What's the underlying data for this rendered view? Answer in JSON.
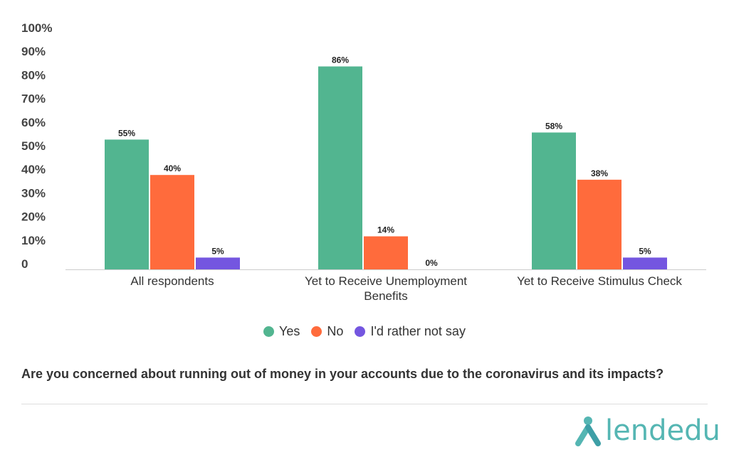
{
  "chart_data": {
    "type": "bar",
    "categories": [
      [
        "All respondents"
      ],
      [
        "Yet to Receive Unemployment",
        "Benefits"
      ],
      [
        "Yet to Receive Stimulus Check"
      ]
    ],
    "series": [
      {
        "name": "Yes",
        "color": "#52b590",
        "values": [
          55,
          86,
          58
        ],
        "labels": [
          "55%",
          "86%",
          "58%"
        ]
      },
      {
        "name": "No",
        "color": "#ff6b3c",
        "values": [
          40,
          14,
          38
        ],
        "labels": [
          "40%",
          "14%",
          "38%"
        ]
      },
      {
        "name": "I'd rather not say",
        "color": "#7456e0",
        "values": [
          5,
          0,
          5
        ],
        "labels": [
          "5%",
          "0%",
          "5%"
        ]
      }
    ],
    "ylim": [
      0,
      100
    ],
    "yticks": [
      {
        "value": 0,
        "label": "0"
      },
      {
        "value": 10,
        "label": "10%"
      },
      {
        "value": 20,
        "label": "20%"
      },
      {
        "value": 30,
        "label": "30%"
      },
      {
        "value": 40,
        "label": "40%"
      },
      {
        "value": 50,
        "label": "50%"
      },
      {
        "value": 60,
        "label": "60%"
      },
      {
        "value": 70,
        "label": "70%"
      },
      {
        "value": 80,
        "label": "80%"
      },
      {
        "value": 90,
        "label": "90%"
      },
      {
        "value": 100,
        "label": "100%"
      }
    ],
    "grid": false,
    "legend_position": "bottom",
    "title": "Are you concerned about running out of money in your accounts due to the coronavirus and its impacts?"
  },
  "brand": {
    "name": "lendedu",
    "color": "#55b6b3"
  }
}
